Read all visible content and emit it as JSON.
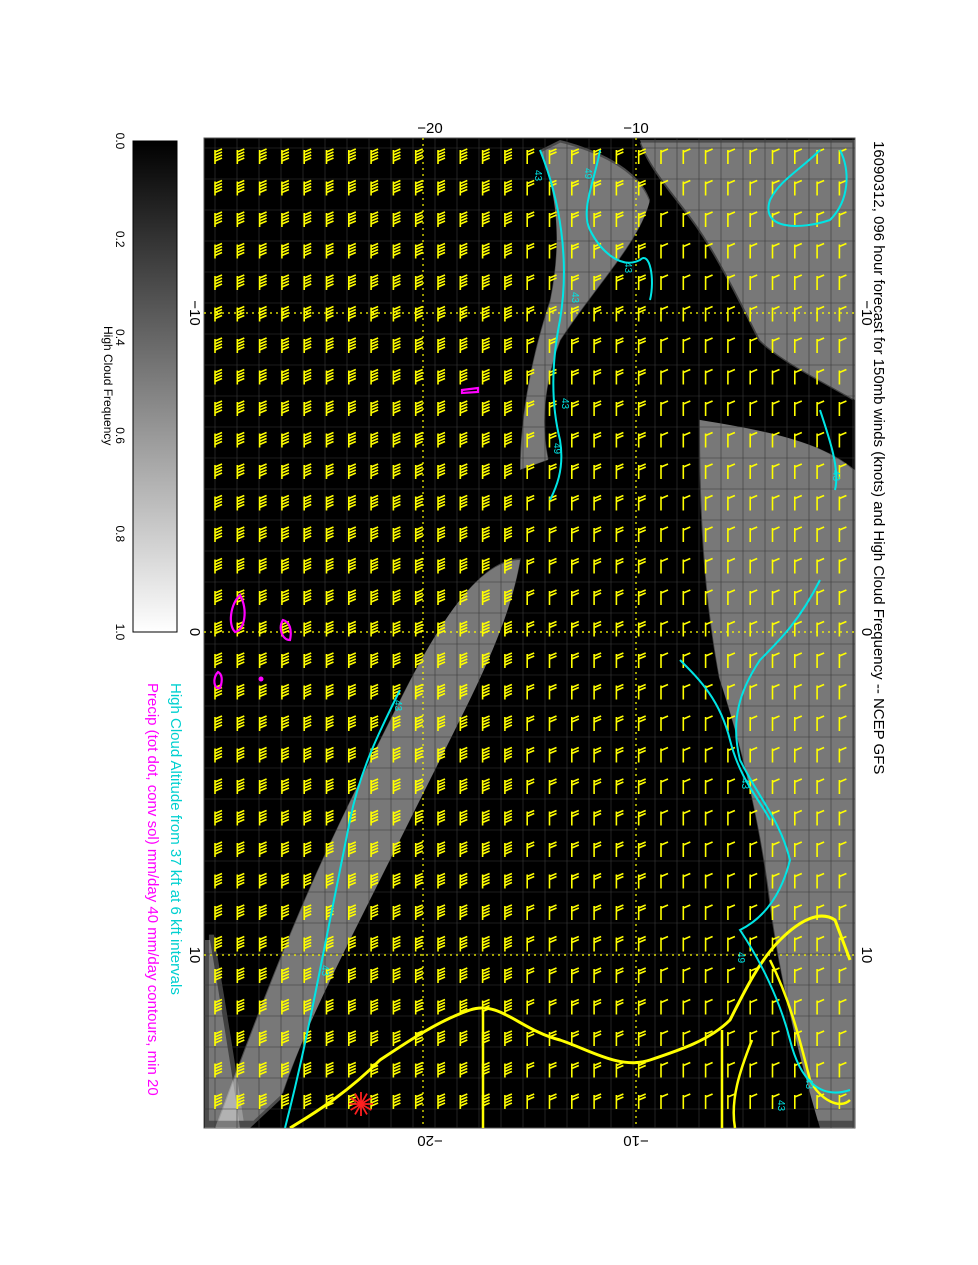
{
  "title": "16090312, 096 hour forecast for 150mb winds (knots) and High Cloud Frequency -- NCEP GFS",
  "legend_line1": "High Cloud Altitude from 37 kft at 6 kft intervals",
  "legend_line2": "Precip (tot dot, conv sol) mm/day 40 mm/day contours, min 20",
  "colorbar": {
    "label": "High Cloud Frequency",
    "ticks": [
      "0.0",
      "0.2",
      "0.4",
      "0.6",
      "0.8",
      "1.0"
    ]
  },
  "axes": {
    "top_ticks": [
      "-20",
      "-10"
    ],
    "bottom_ticks": [
      "-20",
      "-10"
    ],
    "left_ticks": [
      "-10",
      "0",
      "10"
    ],
    "right_ticks": [
      "-10",
      "0",
      "10"
    ]
  },
  "contour_labels": [
    "49",
    "43",
    "43",
    "43",
    "43",
    "49",
    "43",
    "43",
    "43",
    "49",
    "43",
    "43",
    "43"
  ],
  "colors": {
    "background": "#000000",
    "wind_barbs": "#ffff00",
    "coastline": "#ffff00",
    "cloud_altitude_contour": "#00e5e5",
    "precip_contour": "#ff00ff",
    "marker": "#ff2020",
    "title_text": "#000000",
    "legend_line1": "#00e5e5",
    "legend_line2": "#ff00ff"
  },
  "icons": {
    "storm_marker": "red-asterisk-icon"
  }
}
